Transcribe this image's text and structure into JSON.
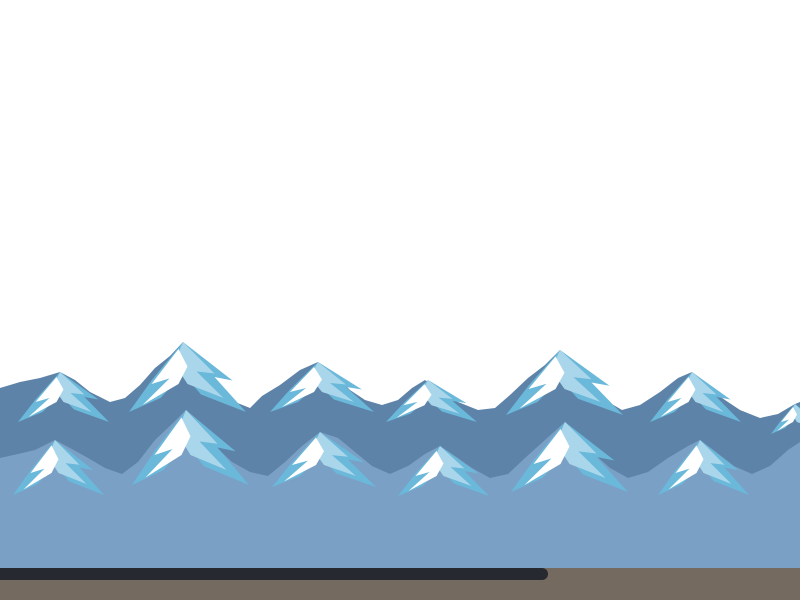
{
  "scene": {
    "colors": {
      "sky": "#ffffff",
      "mountains_far": "#5e83a8",
      "mountains_near": "#7ba0c6",
      "snow_highlight": "#ffffff",
      "snow_light": "#a9d6ea",
      "snow_blue": "#6ab8da",
      "rock_shadow": "#4f7398",
      "ground": "#756a5f",
      "ground_shadow": "#262930"
    }
  }
}
